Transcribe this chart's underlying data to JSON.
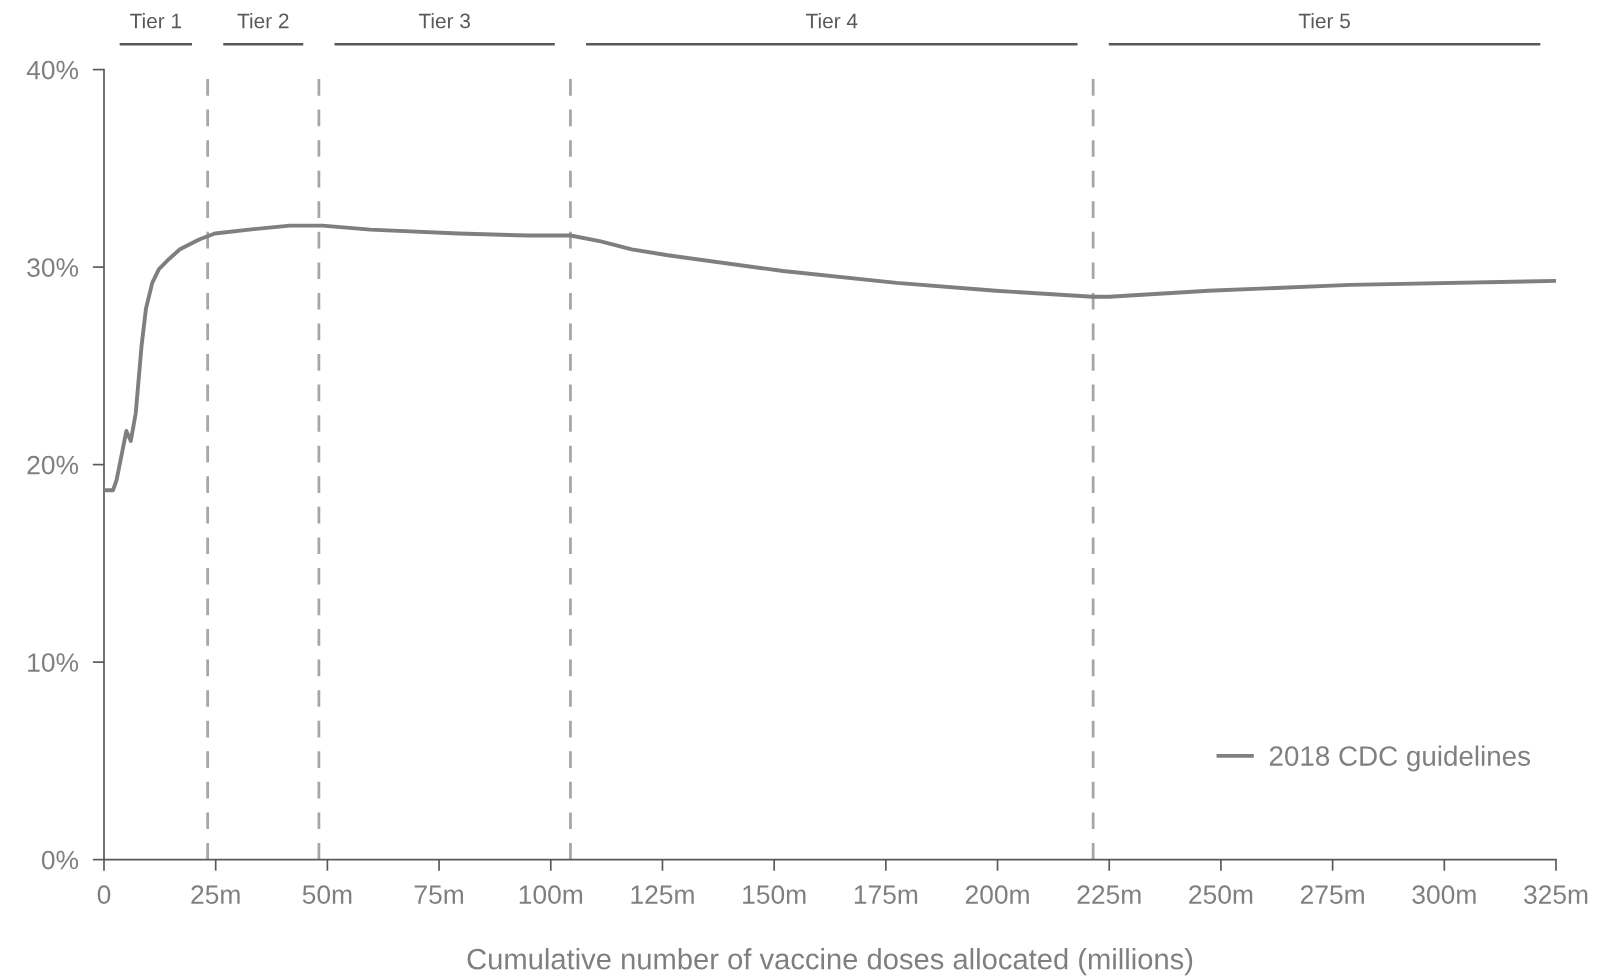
{
  "chart_data": {
    "type": "line",
    "xlabel": "Cumulative number of vaccine doses allocated (millions)",
    "series": [
      {
        "name": "2018 CDC guidelines",
        "color": "#7f7f7f",
        "x": [
          0,
          2.0,
          2.8,
          5.0,
          6.0,
          7.1,
          8.4,
          9.4,
          10.8,
          12.3,
          14.5,
          17.0,
          21.3,
          24.8,
          32.5,
          41.6,
          48.9,
          59.6,
          79.4,
          94.9,
          104.4,
          111.2,
          118.1,
          126.2,
          152.0,
          177.4,
          199.6,
          221.3,
          225,
          247.2,
          278.9,
          325
        ],
        "values": [
          18.7,
          18.7,
          19.2,
          21.7,
          21.2,
          22.6,
          26.0,
          27.9,
          29.2,
          29.9,
          30.4,
          30.9,
          31.4,
          31.7,
          31.9,
          32.1,
          32.1,
          31.9,
          31.7,
          31.6,
          31.6,
          31.3,
          30.9,
          30.6,
          29.8,
          29.2,
          28.8,
          28.5,
          28.5,
          28.8,
          29.1,
          29.3
        ]
      }
    ],
    "xlim": [
      0,
      325
    ],
    "xticks": [
      {
        "value": 0,
        "label": "0"
      },
      {
        "value": 25,
        "label": "25m"
      },
      {
        "value": 50,
        "label": "50m"
      },
      {
        "value": 75,
        "label": "75m"
      },
      {
        "value": 100,
        "label": "100m"
      },
      {
        "value": 125,
        "label": "125m"
      },
      {
        "value": 150,
        "label": "150m"
      },
      {
        "value": 175,
        "label": "175m"
      },
      {
        "value": 200,
        "label": "200m"
      },
      {
        "value": 225,
        "label": "225m"
      },
      {
        "value": 250,
        "label": "250m"
      },
      {
        "value": 275,
        "label": "275m"
      },
      {
        "value": 300,
        "label": "300m"
      },
      {
        "value": 325,
        "label": "325m"
      }
    ],
    "ylim": [
      0,
      40
    ],
    "yticks": [
      {
        "value": 0,
        "label": "0%"
      },
      {
        "value": 10,
        "label": "10%"
      },
      {
        "value": 20,
        "label": "20%"
      },
      {
        "value": 30,
        "label": "30%"
      },
      {
        "value": 40,
        "label": "40%"
      }
    ],
    "ref_lines": [
      {
        "axis": "x",
        "value": 23.2,
        "color": "#a6a6a6",
        "line_style": "dashed"
      },
      {
        "axis": "x",
        "value": 48.1,
        "color": "#a6a6a6",
        "line_style": "dashed"
      },
      {
        "axis": "x",
        "value": 104.4,
        "color": "#a6a6a6",
        "line_style": "dashed"
      },
      {
        "axis": "x",
        "value": 221.4,
        "color": "#a6a6a6",
        "line_style": "dashed"
      }
    ],
    "annotations": [
      "Tier 1",
      "Tier 2",
      "Tier 3",
      "Tier 4",
      "Tier 5"
    ],
    "grid": false,
    "legend": "bottom right",
    "line_style": "solid",
    "marker": "none"
  }
}
